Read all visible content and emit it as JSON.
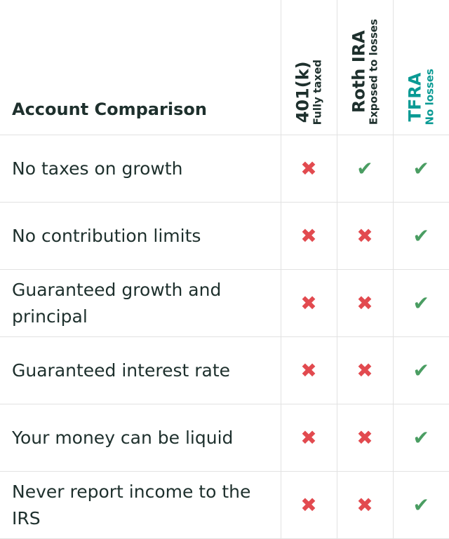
{
  "title": "Account Comparison",
  "columns": [
    {
      "name": "401(k)",
      "sub": "Fully taxed",
      "color": "#1e302d"
    },
    {
      "name": "Roth IRA",
      "sub": "Exposed to losses",
      "color": "#1e302d"
    },
    {
      "name": "TFRA",
      "sub": "No losses",
      "color": "#0a9a94"
    }
  ],
  "rows": [
    {
      "label": "No taxes on growth",
      "values": [
        false,
        true,
        true
      ]
    },
    {
      "label": "No contribution limits",
      "values": [
        false,
        false,
        true
      ]
    },
    {
      "label": "Guaranteed growth and principal",
      "values": [
        false,
        false,
        true
      ]
    },
    {
      "label": "Guaranteed interest rate",
      "values": [
        false,
        false,
        true
      ]
    },
    {
      "label": "Your money can be liquid",
      "values": [
        false,
        false,
        true
      ]
    },
    {
      "label": "Never report income to the IRS",
      "values": [
        false,
        false,
        true
      ]
    }
  ],
  "icons": {
    "yes": "check-icon",
    "no": "x-icon"
  },
  "colors": {
    "check": "#4a9d62",
    "cross": "#e24a4f",
    "accent": "#0a9a94"
  }
}
